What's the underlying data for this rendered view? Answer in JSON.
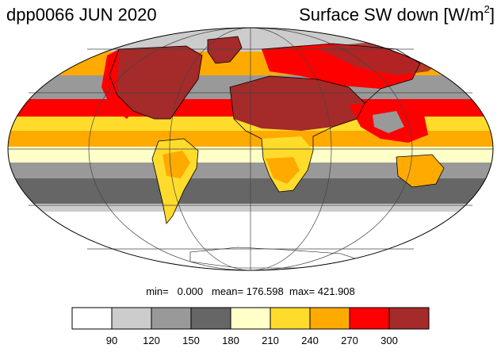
{
  "header": {
    "title_left": "dpp0066 JUN 2020",
    "title_right_main": "Surface SW down [W/m",
    "title_right_sup": "2",
    "title_right_tail": "]"
  },
  "stats": {
    "min_label": "min=",
    "min_value": "0.000",
    "mean_label": "mean=",
    "mean_value": "176.598",
    "max_label": "max=",
    "max_value": "421.908"
  },
  "colorbar": {
    "colors": [
      "#ffffff",
      "#cccccc",
      "#999999",
      "#666666",
      "#ffffc8",
      "#ffdc2c",
      "#ffaa00",
      "#ff0000",
      "#a52a2a"
    ],
    "tick_labels": [
      "90",
      "120",
      "150",
      "180",
      "210",
      "240",
      "270",
      "300"
    ]
  },
  "map": {
    "projection": "Mollweide",
    "graticule": true,
    "colors": {
      "ocean_polar_south": "#ffffff",
      "ocean_cloudy": "#999999",
      "storm_track": "#666666",
      "subtropics": "#ffdc2c",
      "tropics": "#ffaa00",
      "desert": "#a52a2a",
      "hot": "#ff0000",
      "arctic": "#cccccc"
    }
  }
}
